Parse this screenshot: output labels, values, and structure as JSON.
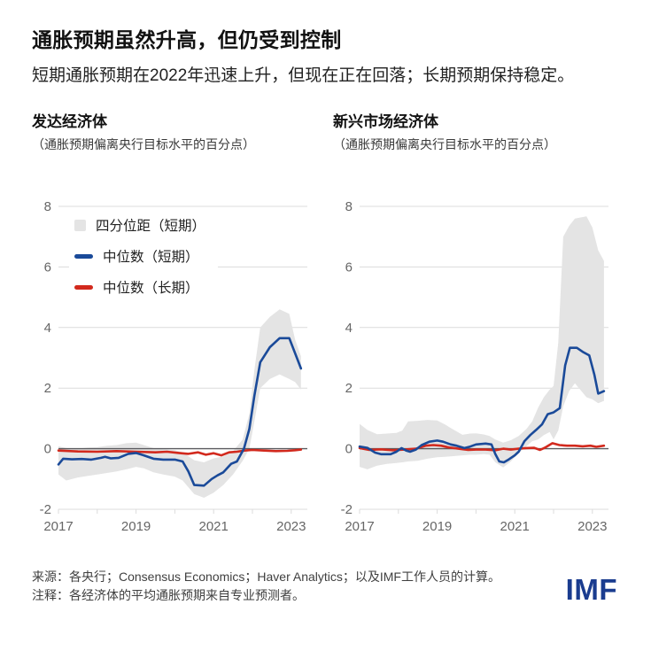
{
  "header": {
    "title": "通胀预期虽然升高，但仍受到控制",
    "subtitle": "短期通胀预期在2022年迅速上升，但现在正在回落；长期预期保持稳定。"
  },
  "legend": {
    "items": [
      {
        "label": "四分位距（短期）",
        "type": "band",
        "color": "#e4e4e4"
      },
      {
        "label": "中位数（短期）",
        "type": "line",
        "color": "#1a4a99"
      },
      {
        "label": "中位数（长期）",
        "type": "line",
        "color": "#d2291d"
      }
    ]
  },
  "colors": {
    "band": "#e4e4e4",
    "short_term": "#1a4a99",
    "long_term": "#d2291d",
    "gridline": "#dcdcdc",
    "zero_line": "#5a5a5e",
    "tick_text": "#666666",
    "logo_blue": "#1a3c8f"
  },
  "chart_data": [
    {
      "type": "line",
      "key": "advanced-economies",
      "title": "发达经济体",
      "units_caption": "（通胀预期偏离央行目标水平的百分点）",
      "xlim": [
        2017,
        2023.3
      ],
      "ylim": [
        -2,
        8
      ],
      "yticks": [
        8,
        6,
        4,
        2,
        0,
        -2
      ],
      "xticks": [
        2017,
        2018,
        2019,
        2020,
        2021,
        2022,
        2023
      ],
      "xtick_labels": [
        2017,
        2019,
        2021,
        2023
      ],
      "band": {
        "label": "四分位距（短期）",
        "points": [
          [
            2017.0,
            -0.85,
            0.08
          ],
          [
            2017.2,
            -1.05,
            0.02
          ],
          [
            2017.5,
            -0.95,
            0.0
          ],
          [
            2017.75,
            -0.9,
            0.04
          ],
          [
            2018.0,
            -0.85,
            0.05
          ],
          [
            2018.25,
            -0.8,
            0.1
          ],
          [
            2018.5,
            -0.75,
            0.12
          ],
          [
            2018.75,
            -0.68,
            0.18
          ],
          [
            2019.0,
            -0.6,
            0.2
          ],
          [
            2019.2,
            -0.65,
            0.12
          ],
          [
            2019.45,
            -0.78,
            0.02
          ],
          [
            2019.7,
            -0.85,
            -0.02
          ],
          [
            2020.0,
            -0.92,
            -0.05
          ],
          [
            2020.2,
            -1.05,
            -0.12
          ],
          [
            2020.5,
            -1.5,
            -0.38
          ],
          [
            2020.75,
            -1.62,
            -0.45
          ],
          [
            2021.0,
            -1.45,
            -0.32
          ],
          [
            2021.25,
            -1.2,
            -0.25
          ],
          [
            2021.5,
            -0.85,
            -0.08
          ],
          [
            2021.75,
            -0.4,
            0.3
          ],
          [
            2021.92,
            0.0,
            1.15
          ],
          [
            2022.05,
            0.9,
            2.6
          ],
          [
            2022.2,
            2.0,
            4.0
          ],
          [
            2022.45,
            2.3,
            4.35
          ],
          [
            2022.7,
            2.45,
            4.6
          ],
          [
            2022.95,
            2.3,
            4.45
          ],
          [
            2023.1,
            2.2,
            3.6
          ],
          [
            2023.25,
            1.95,
            3.05
          ]
        ]
      },
      "series": [
        {
          "key": "short-term-median",
          "name": "中位数（短期）",
          "color": "#1a4a99",
          "points": [
            [
              2017.0,
              -0.52
            ],
            [
              2017.12,
              -0.33
            ],
            [
              2017.35,
              -0.35
            ],
            [
              2017.6,
              -0.34
            ],
            [
              2017.85,
              -0.36
            ],
            [
              2018.1,
              -0.3
            ],
            [
              2018.2,
              -0.27
            ],
            [
              2018.35,
              -0.32
            ],
            [
              2018.55,
              -0.3
            ],
            [
              2018.8,
              -0.17
            ],
            [
              2019.0,
              -0.14
            ],
            [
              2019.2,
              -0.22
            ],
            [
              2019.45,
              -0.33
            ],
            [
              2019.7,
              -0.36
            ],
            [
              2020.0,
              -0.36
            ],
            [
              2020.2,
              -0.42
            ],
            [
              2020.35,
              -0.75
            ],
            [
              2020.5,
              -1.2
            ],
            [
              2020.75,
              -1.22
            ],
            [
              2020.95,
              -1.0
            ],
            [
              2021.1,
              -0.88
            ],
            [
              2021.25,
              -0.78
            ],
            [
              2021.45,
              -0.5
            ],
            [
              2021.6,
              -0.42
            ],
            [
              2021.78,
              0.0
            ],
            [
              2021.92,
              0.65
            ],
            [
              2022.05,
              1.75
            ],
            [
              2022.2,
              2.85
            ],
            [
              2022.45,
              3.35
            ],
            [
              2022.7,
              3.65
            ],
            [
              2022.95,
              3.65
            ],
            [
              2023.25,
              2.65
            ]
          ]
        },
        {
          "key": "long-term-median",
          "name": "中位数（长期）",
          "color": "#d2291d",
          "points": [
            [
              2017.0,
              -0.06
            ],
            [
              2017.5,
              -0.09
            ],
            [
              2018.0,
              -0.1
            ],
            [
              2018.5,
              -0.08
            ],
            [
              2019.0,
              -0.1
            ],
            [
              2019.5,
              -0.12
            ],
            [
              2019.8,
              -0.1
            ],
            [
              2020.1,
              -0.14
            ],
            [
              2020.35,
              -0.17
            ],
            [
              2020.6,
              -0.12
            ],
            [
              2020.8,
              -0.2
            ],
            [
              2021.0,
              -0.15
            ],
            [
              2021.2,
              -0.22
            ],
            [
              2021.4,
              -0.12
            ],
            [
              2021.6,
              -0.1
            ],
            [
              2021.8,
              -0.06
            ],
            [
              2022.0,
              -0.04
            ],
            [
              2022.3,
              -0.06
            ],
            [
              2022.6,
              -0.08
            ],
            [
              2022.9,
              -0.07
            ],
            [
              2023.1,
              -0.05
            ],
            [
              2023.25,
              -0.03
            ]
          ]
        }
      ]
    },
    {
      "type": "line",
      "key": "emerging-market-economies",
      "title": "新兴市场经济体",
      "units_caption": "（通胀预期偏离央行目标水平的百分点）",
      "xlim": [
        2017,
        2023.3
      ],
      "ylim": [
        -2,
        8
      ],
      "yticks": [
        8,
        6,
        4,
        2,
        0,
        -2
      ],
      "xticks": [
        2017,
        2018,
        2019,
        2020,
        2021,
        2022,
        2023
      ],
      "xtick_labels": [
        2017,
        2019,
        2021,
        2023
      ],
      "band": {
        "label": "四分位距（短期）",
        "points": [
          [
            2017.0,
            -0.6,
            0.82
          ],
          [
            2017.2,
            -0.68,
            0.62
          ],
          [
            2017.45,
            -0.56,
            0.48
          ],
          [
            2017.7,
            -0.5,
            0.5
          ],
          [
            2017.95,
            -0.47,
            0.52
          ],
          [
            2018.1,
            -0.45,
            0.6
          ],
          [
            2018.25,
            -0.42,
            0.9
          ],
          [
            2018.5,
            -0.4,
            0.92
          ],
          [
            2018.75,
            -0.33,
            0.95
          ],
          [
            2019.0,
            -0.28,
            0.93
          ],
          [
            2019.2,
            -0.27,
            0.8
          ],
          [
            2019.35,
            -0.25,
            0.68
          ],
          [
            2019.65,
            -0.22,
            0.46
          ],
          [
            2019.85,
            -0.2,
            0.5
          ],
          [
            2020.0,
            -0.2,
            0.51
          ],
          [
            2020.2,
            -0.18,
            0.47
          ],
          [
            2020.35,
            -0.2,
            0.42
          ],
          [
            2020.5,
            -0.45,
            0.3
          ],
          [
            2020.7,
            -0.62,
            0.2
          ],
          [
            2020.9,
            -0.42,
            0.28
          ],
          [
            2021.1,
            -0.15,
            0.42
          ],
          [
            2021.3,
            0.08,
            0.65
          ],
          [
            2021.45,
            0.25,
            0.9
          ],
          [
            2021.6,
            0.3,
            1.35
          ],
          [
            2021.75,
            0.45,
            1.7
          ],
          [
            2021.9,
            0.55,
            1.95
          ],
          [
            2022.0,
            0.31,
            2.07
          ],
          [
            2022.12,
            0.6,
            3.5
          ],
          [
            2022.25,
            1.4,
            7.0
          ],
          [
            2022.4,
            1.9,
            7.35
          ],
          [
            2022.55,
            2.16,
            7.6
          ],
          [
            2022.85,
            1.7,
            7.67
          ],
          [
            2023.0,
            1.63,
            7.3
          ],
          [
            2023.15,
            1.5,
            6.55
          ],
          [
            2023.3,
            1.58,
            6.2
          ]
        ]
      },
      "series": [
        {
          "key": "short-term-median",
          "name": "中位数（短期）",
          "color": "#1a4a99",
          "points": [
            [
              2017.0,
              0.07
            ],
            [
              2017.2,
              0.03
            ],
            [
              2017.4,
              -0.13
            ],
            [
              2017.55,
              -0.18
            ],
            [
              2017.8,
              -0.18
            ],
            [
              2017.95,
              -0.1
            ],
            [
              2018.08,
              0.02
            ],
            [
              2018.2,
              -0.06
            ],
            [
              2018.3,
              -0.1
            ],
            [
              2018.45,
              -0.03
            ],
            [
              2018.6,
              0.12
            ],
            [
              2018.8,
              0.23
            ],
            [
              2019.0,
              0.27
            ],
            [
              2019.15,
              0.23
            ],
            [
              2019.35,
              0.14
            ],
            [
              2019.5,
              0.1
            ],
            [
              2019.7,
              0.02
            ],
            [
              2019.85,
              0.07
            ],
            [
              2020.0,
              0.14
            ],
            [
              2020.25,
              0.17
            ],
            [
              2020.4,
              0.14
            ],
            [
              2020.5,
              -0.18
            ],
            [
              2020.6,
              -0.42
            ],
            [
              2020.72,
              -0.45
            ],
            [
              2020.85,
              -0.35
            ],
            [
              2021.0,
              -0.22
            ],
            [
              2021.1,
              -0.1
            ],
            [
              2021.25,
              0.25
            ],
            [
              2021.4,
              0.45
            ],
            [
              2021.55,
              0.62
            ],
            [
              2021.7,
              0.8
            ],
            [
              2021.85,
              1.14
            ],
            [
              2022.0,
              1.2
            ],
            [
              2022.16,
              1.34
            ],
            [
              2022.3,
              2.75
            ],
            [
              2022.42,
              3.33
            ],
            [
              2022.6,
              3.33
            ],
            [
              2022.75,
              3.2
            ],
            [
              2022.92,
              3.08
            ],
            [
              2023.05,
              2.45
            ],
            [
              2023.15,
              1.82
            ],
            [
              2023.3,
              1.9
            ]
          ]
        },
        {
          "key": "long-term-median",
          "name": "中位数（长期）",
          "color": "#d2291d",
          "points": [
            [
              2017.0,
              0.02
            ],
            [
              2017.25,
              -0.04
            ],
            [
              2017.55,
              -0.02
            ],
            [
              2017.85,
              -0.05
            ],
            [
              2018.15,
              -0.03
            ],
            [
              2018.45,
              0.0
            ],
            [
              2018.7,
              0.1
            ],
            [
              2018.9,
              0.12
            ],
            [
              2019.1,
              0.1
            ],
            [
              2019.3,
              0.04
            ],
            [
              2019.55,
              0.0
            ],
            [
              2019.8,
              -0.04
            ],
            [
              2020.0,
              -0.03
            ],
            [
              2020.25,
              -0.03
            ],
            [
              2020.5,
              -0.05
            ],
            [
              2020.7,
              0.0
            ],
            [
              2020.9,
              -0.03
            ],
            [
              2021.1,
              0.0
            ],
            [
              2021.3,
              0.02
            ],
            [
              2021.5,
              0.03
            ],
            [
              2021.65,
              -0.04
            ],
            [
              2021.8,
              0.05
            ],
            [
              2021.97,
              0.18
            ],
            [
              2022.15,
              0.12
            ],
            [
              2022.35,
              0.1
            ],
            [
              2022.55,
              0.1
            ],
            [
              2022.75,
              0.08
            ],
            [
              2022.95,
              0.1
            ],
            [
              2023.1,
              0.06
            ],
            [
              2023.3,
              0.1
            ]
          ]
        }
      ]
    }
  ],
  "footer": {
    "source": "来源：各央行；Consensus Economics；Haver Analytics；以及IMF工作人员的计算。",
    "note": "注释：各经济体的平均通胀预期来自专业预测者。",
    "logo": "IMF"
  }
}
